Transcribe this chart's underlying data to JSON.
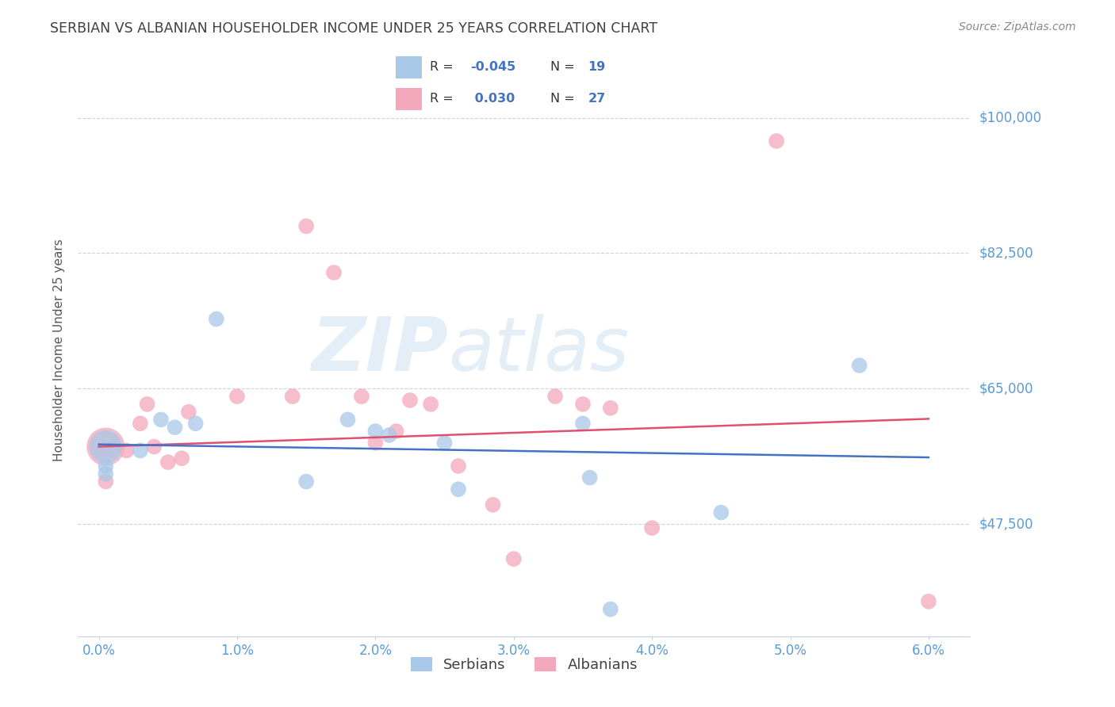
{
  "title": "SERBIAN VS ALBANIAN HOUSEHOLDER INCOME UNDER 25 YEARS CORRELATION CHART",
  "source": "Source: ZipAtlas.com",
  "ylabel": "Householder Income Under 25 years",
  "xlabel_ticks": [
    "0.0%",
    "1.0%",
    "2.0%",
    "3.0%",
    "4.0%",
    "5.0%",
    "6.0%"
  ],
  "xlabel_vals": [
    0.0,
    1.0,
    2.0,
    3.0,
    4.0,
    5.0,
    6.0
  ],
  "yticks": [
    47500,
    65000,
    82500,
    100000
  ],
  "ytick_labels": [
    "$47,500",
    "$65,000",
    "$82,500",
    "$100,000"
  ],
  "ylim": [
    33000,
    107000
  ],
  "xlim": [
    -0.15,
    6.3
  ],
  "serbian_R": -0.045,
  "serbian_N": 19,
  "albanian_R": 0.03,
  "albanian_N": 27,
  "serbian_color": "#a8c8e8",
  "albanian_color": "#f4a8bc",
  "serbian_line_color": "#4472c4",
  "albanian_line_color": "#e05070",
  "title_color": "#404040",
  "axis_tick_color": "#5b9bd5",
  "watermark_color": "#cce0f0",
  "watermark_alpha": 0.55,
  "serbian_line_intercept": 57800,
  "serbian_line_slope": -280,
  "albanian_line_intercept": 57500,
  "albanian_line_slope": 600,
  "serbian_x": [
    0.05,
    0.05,
    0.05,
    0.3,
    0.45,
    0.55,
    0.7,
    0.85,
    1.5,
    1.8,
    2.0,
    2.1,
    2.5,
    2.6,
    3.5,
    3.55,
    4.5,
    5.5,
    3.7
  ],
  "serbian_y": [
    57500,
    55000,
    54000,
    57000,
    61000,
    60000,
    60500,
    74000,
    53000,
    61000,
    59500,
    59000,
    58000,
    52000,
    60500,
    53500,
    49000,
    68000,
    36500
  ],
  "serbian_size": [
    900,
    200,
    200,
    200,
    200,
    200,
    200,
    200,
    200,
    200,
    200,
    200,
    200,
    200,
    200,
    200,
    200,
    200,
    200
  ],
  "albanian_x": [
    0.05,
    0.05,
    0.2,
    0.3,
    0.35,
    0.4,
    0.5,
    0.6,
    0.65,
    1.0,
    1.4,
    1.5,
    1.7,
    1.9,
    2.0,
    2.15,
    2.25,
    2.4,
    2.6,
    2.85,
    3.0,
    3.3,
    3.5,
    3.7,
    4.0,
    4.9,
    6.0
  ],
  "albanian_y": [
    57500,
    53000,
    57000,
    60500,
    63000,
    57500,
    55500,
    56000,
    62000,
    64000,
    64000,
    86000,
    80000,
    64000,
    58000,
    59500,
    63500,
    63000,
    55000,
    50000,
    43000,
    64000,
    63000,
    62500,
    47000,
    97000,
    37500
  ],
  "albanian_size": [
    1200,
    200,
    200,
    200,
    200,
    200,
    200,
    200,
    200,
    200,
    200,
    200,
    200,
    200,
    200,
    200,
    200,
    200,
    200,
    200,
    200,
    200,
    200,
    200,
    200,
    200,
    200
  ]
}
